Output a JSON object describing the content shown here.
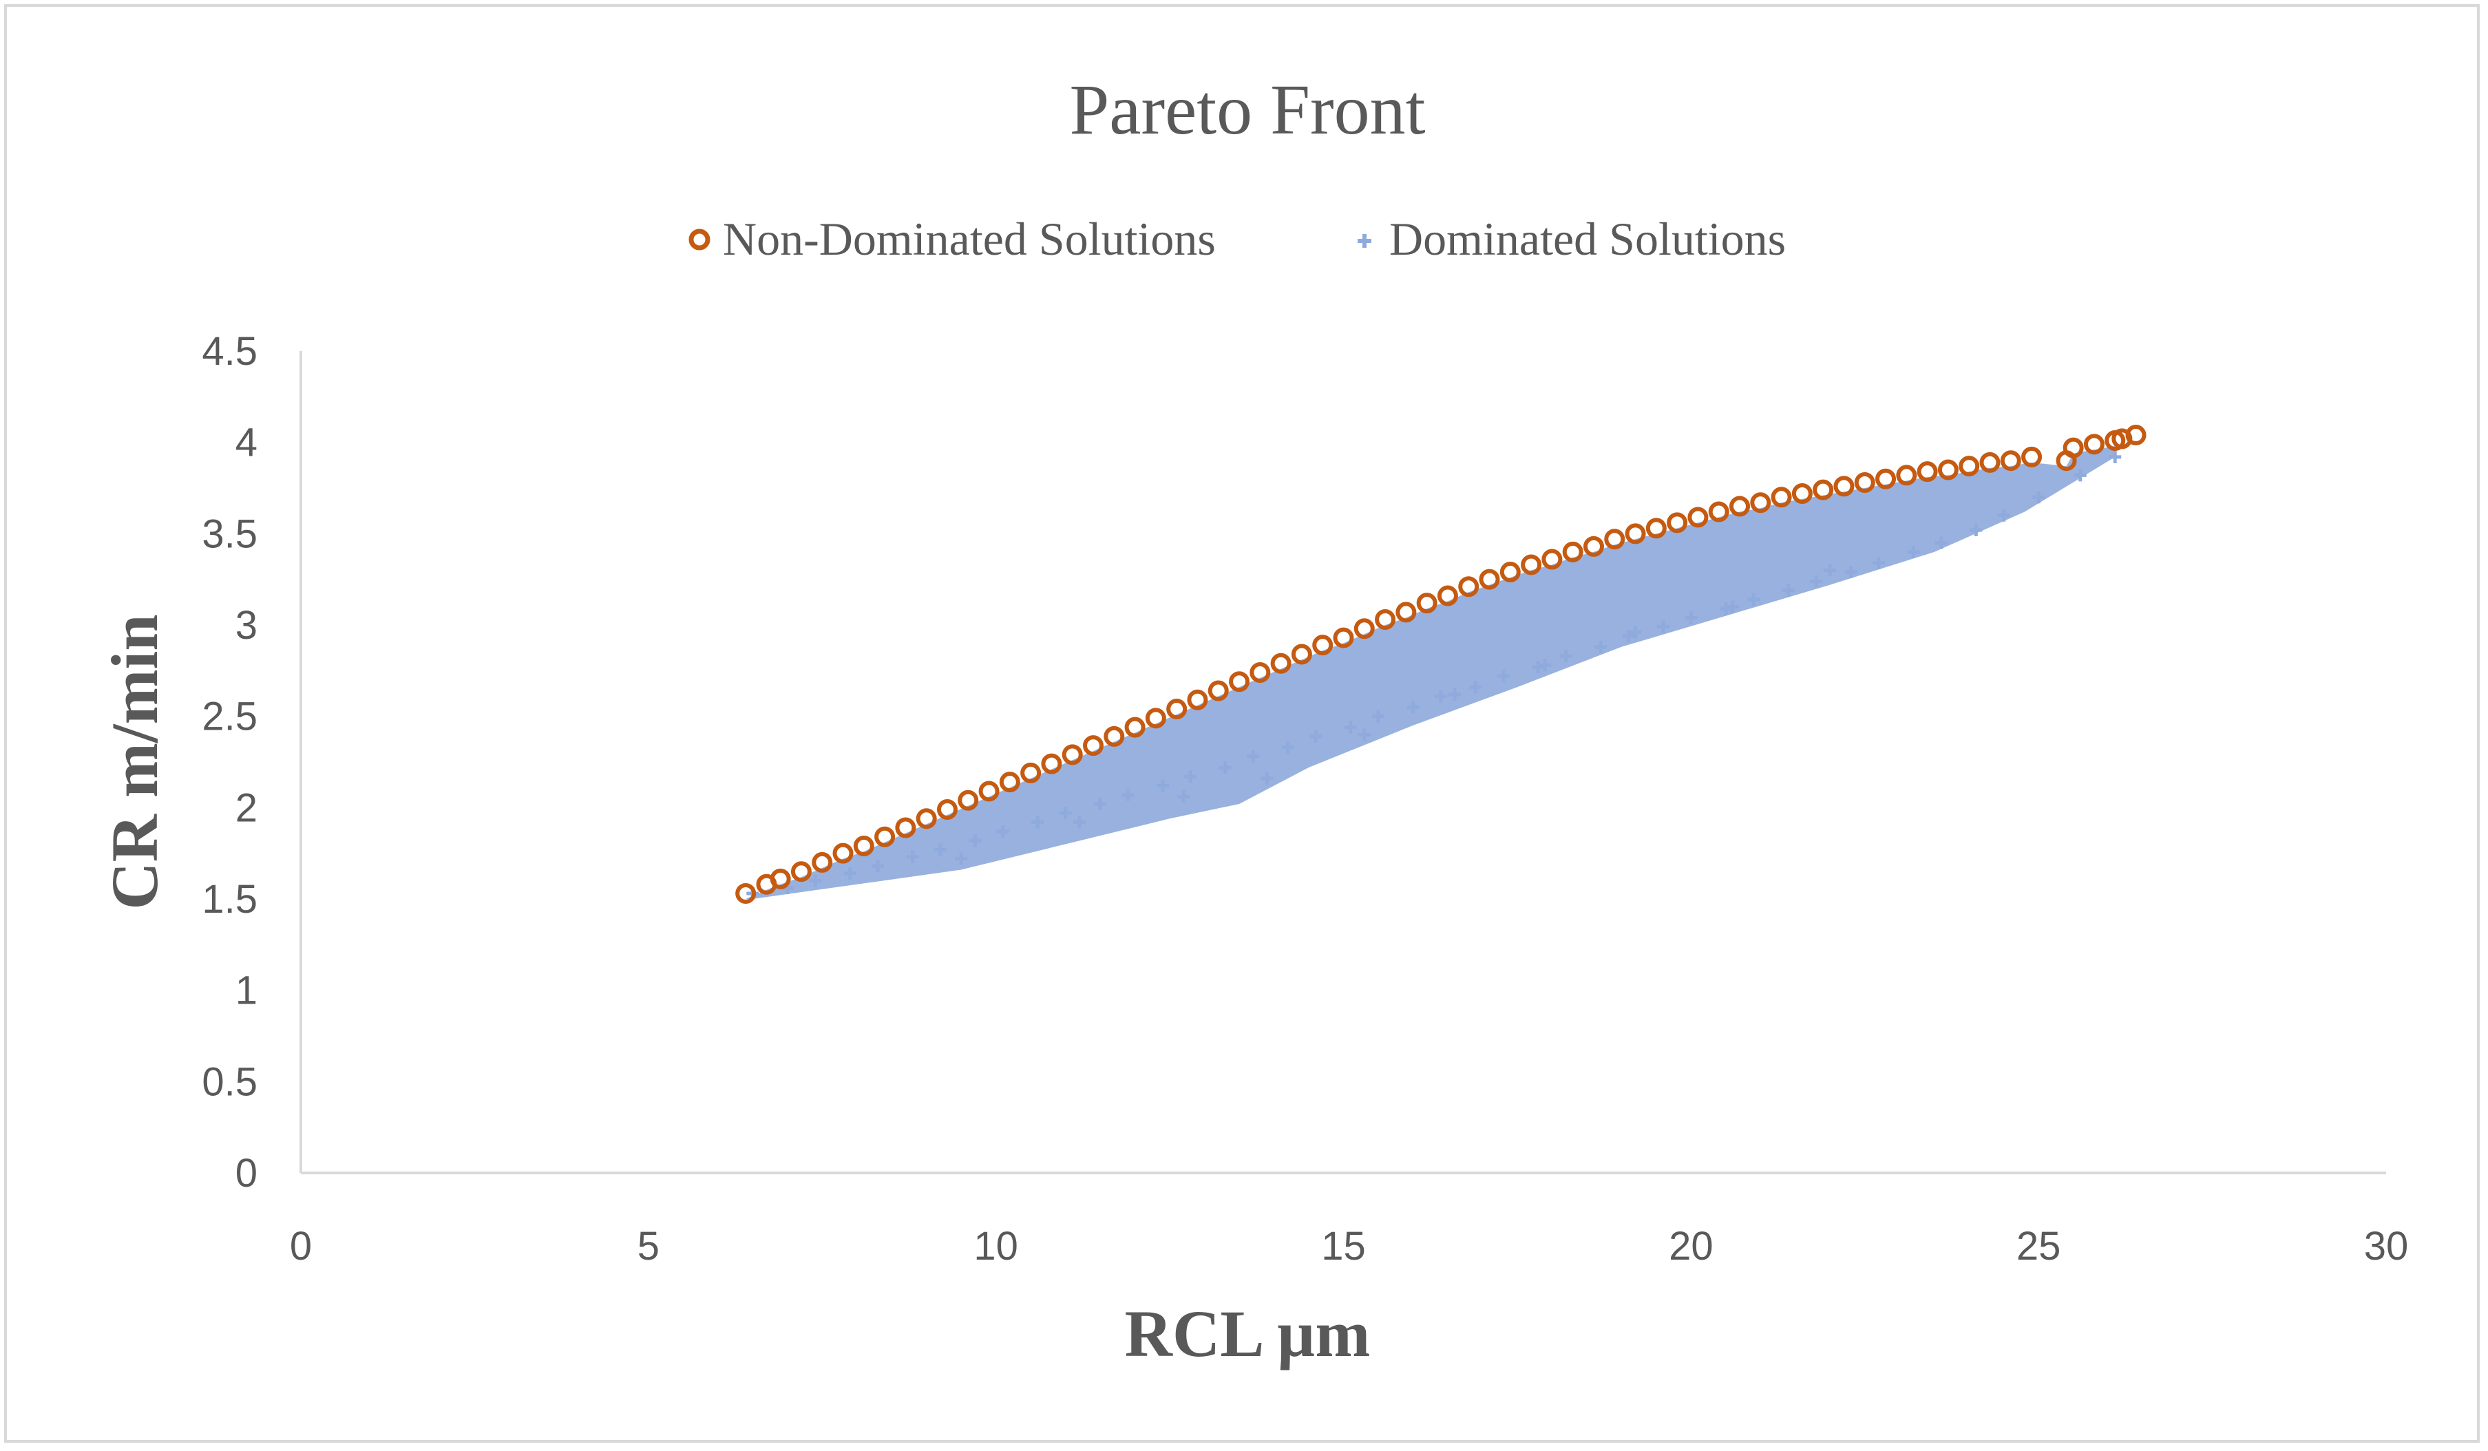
{
  "chart_data": {
    "type": "scatter",
    "title": "Pareto Front",
    "xlabel": "RCL µm",
    "ylabel": "CR m/min",
    "xlim": [
      0,
      30
    ],
    "ylim": [
      0,
      4.5
    ],
    "xticks": [
      "0",
      "5",
      "10",
      "15",
      "20",
      "25",
      "30"
    ],
    "yticks": [
      "0",
      "0.5",
      "1",
      "1.5",
      "2",
      "2.5",
      "3",
      "3.5",
      "4",
      "4.5"
    ],
    "grid": false,
    "legend_position": "top",
    "series": [
      {
        "name": "Non-Dominated Solutions",
        "marker": "circle-open",
        "color": "#c55a11",
        "x": [
          6.4,
          6.7,
          6.9,
          7.2,
          7.5,
          7.8,
          8.1,
          8.4,
          8.7,
          9.0,
          9.3,
          9.6,
          9.9,
          10.2,
          10.5,
          10.8,
          11.1,
          11.4,
          11.7,
          12.0,
          12.3,
          12.6,
          12.9,
          13.2,
          13.5,
          13.8,
          14.1,
          14.4,
          14.7,
          15.0,
          15.3,
          15.6,
          15.9,
          16.2,
          16.5,
          16.8,
          17.1,
          17.4,
          17.7,
          18.0,
          18.3,
          18.6,
          18.9,
          19.2,
          19.5,
          19.8,
          20.1,
          20.4,
          20.7,
          21.0,
          21.3,
          21.6,
          21.9,
          22.2,
          22.5,
          22.8,
          23.1,
          23.4,
          23.7,
          24.0,
          24.3,
          24.6,
          24.9,
          25.4,
          25.5,
          25.8,
          26.1,
          26.2,
          26.4
        ],
        "y": [
          1.53,
          1.58,
          1.61,
          1.65,
          1.7,
          1.75,
          1.79,
          1.84,
          1.89,
          1.94,
          1.99,
          2.04,
          2.09,
          2.14,
          2.19,
          2.24,
          2.29,
          2.34,
          2.39,
          2.44,
          2.49,
          2.54,
          2.59,
          2.64,
          2.69,
          2.74,
          2.79,
          2.84,
          2.89,
          2.93,
          2.98,
          3.03,
          3.07,
          3.12,
          3.16,
          3.21,
          3.25,
          3.29,
          3.33,
          3.36,
          3.4,
          3.43,
          3.47,
          3.5,
          3.53,
          3.56,
          3.59,
          3.62,
          3.65,
          3.67,
          3.7,
          3.72,
          3.74,
          3.76,
          3.78,
          3.8,
          3.82,
          3.84,
          3.85,
          3.87,
          3.89,
          3.9,
          3.92,
          3.9,
          3.97,
          3.99,
          4.01,
          4.02,
          4.04
        ]
      },
      {
        "name": "Dominated Solutions",
        "marker": "plus",
        "color": "#8faadc",
        "x": [
          6.5,
          7.0,
          7.4,
          7.9,
          8.3,
          8.8,
          9.2,
          9.7,
          10.1,
          10.6,
          11.0,
          11.5,
          11.9,
          12.4,
          12.8,
          13.3,
          13.7,
          14.2,
          14.6,
          15.1,
          15.5,
          16.0,
          16.4,
          16.9,
          17.3,
          17.8,
          18.2,
          18.7,
          19.1,
          19.6,
          20.0,
          20.5,
          20.9,
          21.4,
          21.8,
          22.3,
          22.7,
          23.2,
          23.6,
          24.1,
          24.5,
          25.0,
          25.6,
          26.1,
          9.5,
          11.2,
          12.7,
          13.9,
          15.3,
          16.6,
          17.9,
          19.2,
          20.6,
          22.0
        ],
        "y": [
          1.53,
          1.56,
          1.6,
          1.64,
          1.68,
          1.73,
          1.77,
          1.82,
          1.87,
          1.92,
          1.97,
          2.02,
          2.07,
          2.12,
          2.17,
          2.22,
          2.28,
          2.33,
          2.39,
          2.44,
          2.5,
          2.55,
          2.61,
          2.66,
          2.72,
          2.77,
          2.83,
          2.88,
          2.94,
          2.99,
          3.04,
          3.09,
          3.14,
          3.19,
          3.24,
          3.29,
          3.34,
          3.4,
          3.45,
          3.52,
          3.6,
          3.7,
          3.82,
          3.92,
          1.72,
          1.92,
          2.06,
          2.16,
          2.4,
          2.62,
          2.78,
          2.96,
          3.1,
          3.3
        ]
      }
    ]
  }
}
